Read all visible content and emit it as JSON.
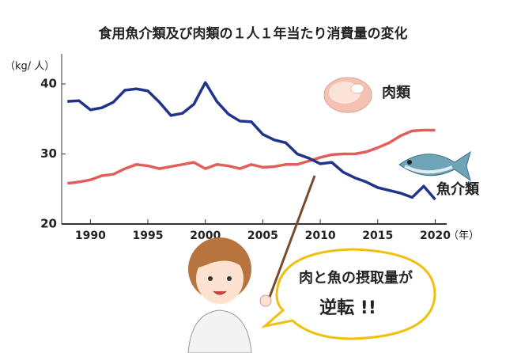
{
  "chart_data": {
    "type": "line",
    "title": "食用魚介類及び肉類の１人１年当たり消費量の変化",
    "y_unit": "（kg/ 人）",
    "x_unit": "（年）",
    "x": [
      1988,
      1989,
      1990,
      1991,
      1992,
      1993,
      1994,
      1995,
      1996,
      1997,
      1998,
      1999,
      2000,
      2001,
      2002,
      2003,
      2004,
      2005,
      2006,
      2007,
      2008,
      2009,
      2010,
      2011,
      2012,
      2013,
      2014,
      2015,
      2016,
      2017,
      2018,
      2019,
      2020
    ],
    "series": [
      {
        "name": "肉類",
        "color": "#e35d5b",
        "values": [
          25.8,
          26.0,
          26.3,
          26.9,
          27.1,
          27.9,
          28.5,
          28.3,
          27.9,
          28.2,
          28.5,
          28.8,
          27.9,
          28.5,
          28.3,
          27.9,
          28.5,
          28.1,
          28.2,
          28.5,
          28.5,
          29.0,
          29.5,
          29.9,
          30.0,
          30.0,
          30.3,
          30.9,
          31.6,
          32.6,
          33.3,
          33.4,
          33.4
        ]
      },
      {
        "name": "魚介類",
        "color": "#22348a",
        "values": [
          37.5,
          37.6,
          36.3,
          36.6,
          37.4,
          39.1,
          39.3,
          39.0,
          37.4,
          35.5,
          35.8,
          37.1,
          40.2,
          37.5,
          35.7,
          34.7,
          34.6,
          32.8,
          32.0,
          31.6,
          30.0,
          29.4,
          28.6,
          28.8,
          27.4,
          26.6,
          26.0,
          25.2,
          24.8,
          24.4,
          23.8,
          25.4,
          23.5
        ]
      }
    ],
    "xlim": [
      1987.5,
      2021
    ],
    "ylim": [
      20,
      44.3
    ],
    "xticks": [
      1990,
      1995,
      2000,
      2005,
      2010,
      2015,
      2020
    ],
    "yticks": [
      20,
      30,
      40
    ],
    "grid": false,
    "annotation": [
      "肉と魚の摂取量が",
      "逆転 !!"
    ]
  }
}
